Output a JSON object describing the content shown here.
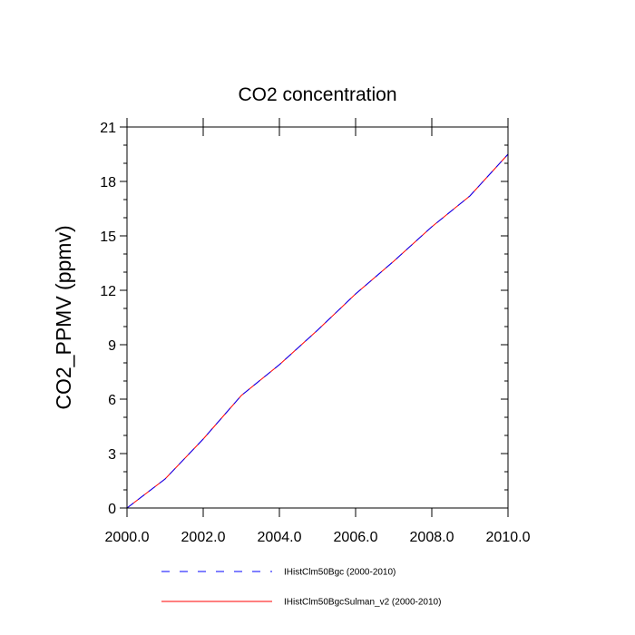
{
  "chart_data": {
    "type": "line",
    "title": "CO2 concentration",
    "xlabel": "",
    "ylabel": "CO2_PPMV  (ppmv)",
    "xlim": [
      2000,
      2010
    ],
    "ylim": [
      0,
      21
    ],
    "x_ticks": [
      2000,
      2002,
      2004,
      2006,
      2008,
      2010
    ],
    "x_tick_labels": [
      "2000.0",
      "2002.0",
      "2004.0",
      "2006.0",
      "2008.0",
      "2010.0"
    ],
    "y_ticks": [
      0,
      3,
      6,
      9,
      12,
      15,
      18,
      21
    ],
    "y_tick_labels": [
      "0",
      "3",
      "6",
      "9",
      "12",
      "15",
      "18",
      "21"
    ],
    "grid": false,
    "legend_position": "bottom",
    "x": [
      2000,
      2001,
      2002,
      2003,
      2004,
      2005,
      2006,
      2007,
      2008,
      2009,
      2010
    ],
    "series": [
      {
        "name": "IHistClm50Bgc (2000-2010)",
        "color": "#0000ff",
        "dash": "dashed",
        "values": [
          0.0,
          1.6,
          3.8,
          6.2,
          7.9,
          9.8,
          11.8,
          13.6,
          15.5,
          17.2,
          19.5
        ]
      },
      {
        "name": "IHistClm50BgcSulman_v2 (2000-2010)",
        "color": "#ff0000",
        "dash": "solid",
        "values": [
          0.0,
          1.6,
          3.8,
          6.2,
          7.9,
          9.8,
          11.8,
          13.6,
          15.5,
          17.2,
          19.5
        ]
      }
    ]
  }
}
